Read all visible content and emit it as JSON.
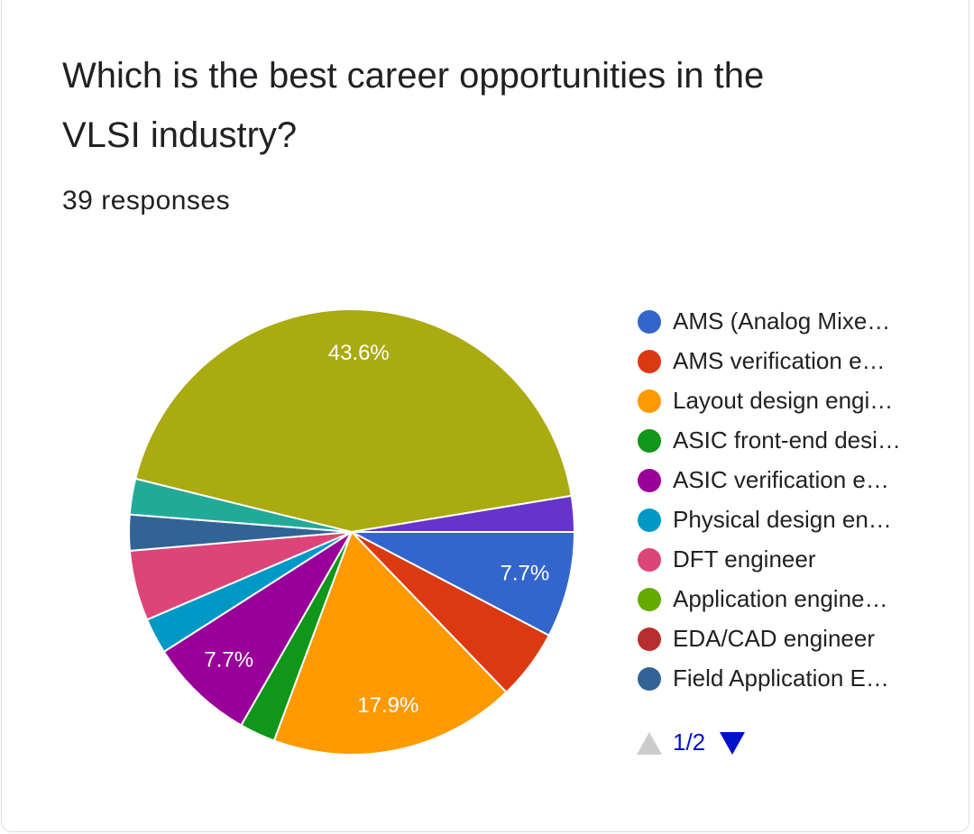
{
  "header": {
    "title": "Which is the best career opportunities in the VLSI industry?",
    "subtitle": "39 responses"
  },
  "chart_data": {
    "type": "pie",
    "categories": [
      "AMS (Analog Mixe…",
      "AMS verification e…",
      "Layout design engi…",
      "ASIC front-end desi…",
      "ASIC verification e…",
      "Physical design en…",
      "DFT engineer",
      "Application engine…",
      "EDA/CAD engineer",
      "Field Application E…",
      null,
      null,
      null,
      null
    ],
    "values": [
      7.7,
      5.1,
      17.9,
      2.6,
      7.7,
      2.6,
      5.1,
      0,
      0,
      2.6,
      0,
      2.6,
      43.6,
      2.6
    ],
    "value_labels": [
      "7.7%",
      null,
      "17.9%",
      null,
      "7.7%",
      null,
      null,
      null,
      null,
      null,
      null,
      null,
      "43.6%",
      null
    ],
    "colors": [
      "#3366cc",
      "#dc3912",
      "#ff9900",
      "#109618",
      "#990099",
      "#0099c6",
      "#dd4477",
      "#66aa00",
      "#b82e2e",
      "#316395",
      "#994499",
      "#22aa99",
      "#aaaa11",
      "#6633cc"
    ],
    "legend": "right",
    "legend_page": "1/2"
  }
}
